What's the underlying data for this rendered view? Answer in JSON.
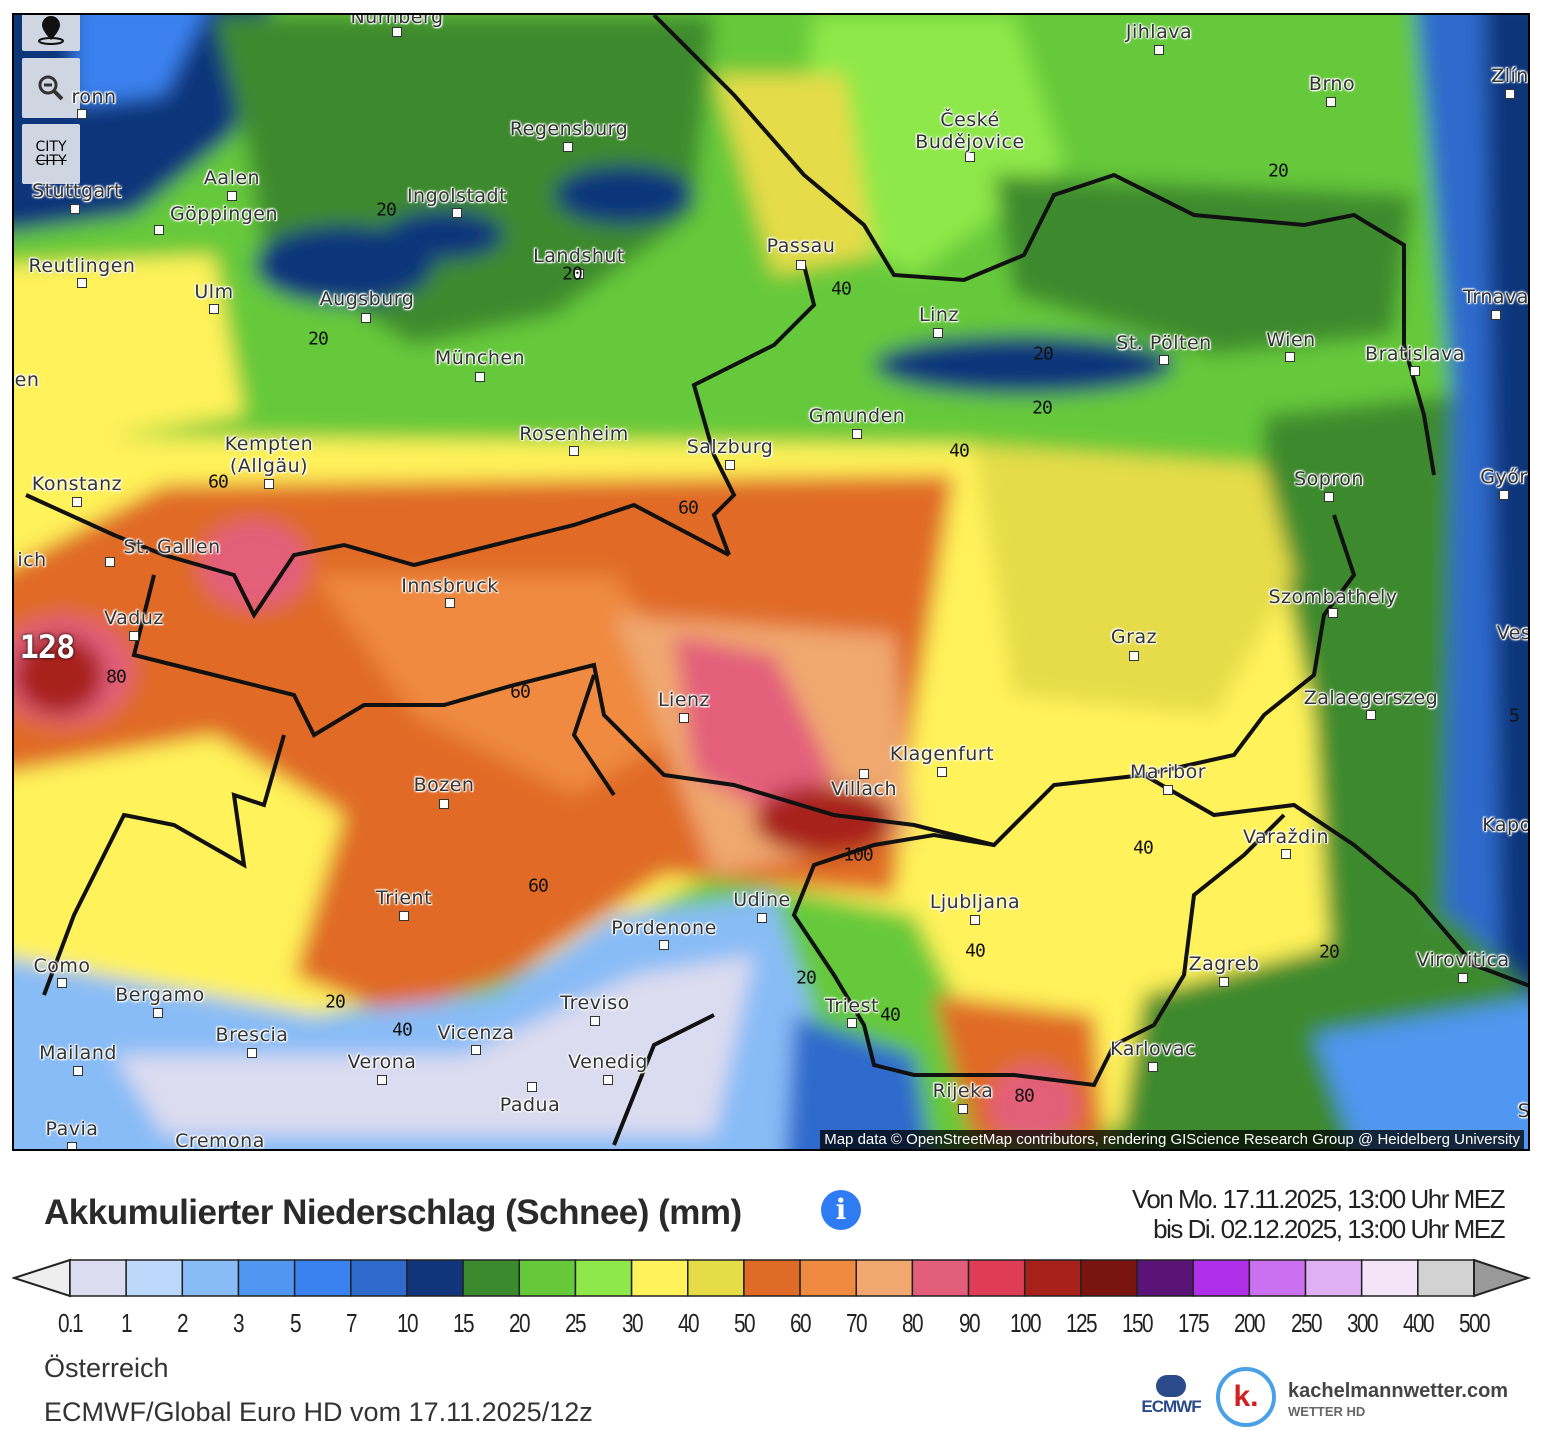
{
  "map": {
    "controls": {
      "location_icon": "map-pin-icon",
      "zoom_icon": "zoom-out-icon",
      "city_toggle_label": "CITY",
      "city_toggle_struck": "CITY"
    },
    "attribution": "Map data © OpenStreetMap contributors, rendering GIScience Research Group @ Heidelberg University",
    "cities": [
      "Nürnberg",
      "ronn",
      "Stuttgart",
      "Aalen",
      "Göppingen",
      "Regensburg",
      "Ingolstadt",
      "Landshut",
      "Passau",
      "Jihlava",
      "Brno",
      "Zlín",
      "České\nBudějovice",
      "Reutlingen",
      "Ulm",
      "Augsburg",
      "München",
      "Linz",
      "St. Pölten",
      "Wien",
      "Bratislava",
      "Trnava",
      "Kempten\n(Allgäu)",
      "Konstanz",
      "Rosenheim",
      "Salzburg",
      "Gmunden",
      "Sopron",
      "Győr",
      "St. Gallen",
      "ich",
      "Vaduz",
      "Innsbruck",
      "Szombathely",
      "Graz",
      "Ves",
      "Lienz",
      "Zalaegerszeg",
      "Klagenfurt",
      "Villach",
      "Maribor",
      "Bozen",
      "Varaždin",
      "Kapo",
      "Trient",
      "Udine",
      "Pordenone",
      "Ljubljana",
      "Zagreb",
      "Virovitica",
      "Como",
      "Bergamo",
      "Treviso",
      "Triest",
      "Brescia",
      "Vicenza",
      "Karlovac",
      "Mailand",
      "Verona",
      "Venedig",
      "Rijeka",
      "Padua",
      "Pavia",
      "Cremona",
      "en",
      "S"
    ],
    "contour_labels": [
      "20",
      "20",
      "20",
      "20",
      "20",
      "20",
      "20",
      "20",
      "20",
      "40",
      "40",
      "40",
      "40",
      "40",
      "40",
      "5",
      "60",
      "60",
      "60",
      "60",
      "80",
      "80",
      "100",
      "128"
    ]
  },
  "legend": {
    "title": "Akkumulierter Niederschlag (Schnee) (mm)",
    "info_icon": "info-icon",
    "date_from": "Von Mo. 17.11.2025, 13:00 Uhr MEZ",
    "date_to": "bis Di. 02.12.2025, 13:00 Uhr MEZ",
    "ticks": [
      "0.1",
      "1",
      "2",
      "3",
      "5",
      "7",
      "10",
      "15",
      "20",
      "25",
      "30",
      "40",
      "50",
      "60",
      "70",
      "80",
      "90",
      "100",
      "125",
      "150",
      "175",
      "200",
      "250",
      "300",
      "400",
      "500"
    ],
    "colors": [
      "#dcdcf0",
      "#bcd8fa",
      "#88bcf6",
      "#4f97f0",
      "#3a82f0",
      "#2e6bcc",
      "#10357a",
      "#3c8a2e",
      "#66c93a",
      "#8ee84a",
      "#fff25a",
      "#e6dc48",
      "#e06a28",
      "#ef8a40",
      "#f0a870",
      "#e35e7a",
      "#df3c58",
      "#a8201a",
      "#7a140e",
      "#5a1478",
      "#b030ea",
      "#ca70f0",
      "#e0b0f4",
      "#f4e4f8",
      "#d2d2d2"
    ],
    "below_color": "#eeeeee",
    "above_color": "#999999"
  },
  "footer": {
    "region": "Österreich",
    "model": "ECMWF/Global Euro HD vom 17.11.2025/12z",
    "ecmwf_logo": "ECMWF",
    "brand": "kachelmannwetter.com",
    "brand_sub": "WETTER HD",
    "brand_k": "k."
  }
}
